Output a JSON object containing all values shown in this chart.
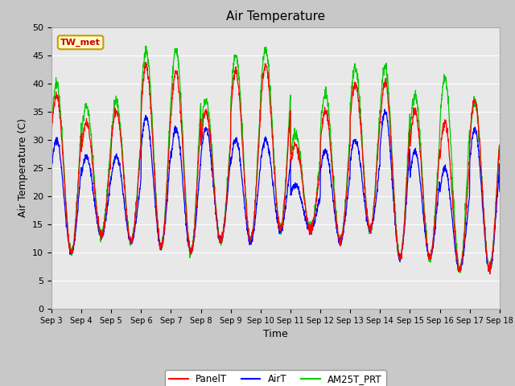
{
  "title": "Air Temperature",
  "xlabel": "Time",
  "ylabel": "Air Temperature (C)",
  "ylim": [
    0,
    50
  ],
  "yticks": [
    0,
    5,
    10,
    15,
    20,
    25,
    30,
    35,
    40,
    45,
    50
  ],
  "xlim_days": [
    3,
    18
  ],
  "xtick_labels": [
    "Sep 3",
    "Sep 4",
    "Sep 5",
    "Sep 6",
    "Sep 7",
    "Sep 8",
    "Sep 9",
    "Sep 10",
    "Sep 11",
    "Sep 12",
    "Sep 13",
    "Sep 14",
    "Sep 15",
    "Sep 16",
    "Sep 17",
    "Sep 18"
  ],
  "label_box_text": "TW_met",
  "legend_labels": [
    "PanelT",
    "AirT",
    "AM25T_PRT"
  ],
  "legend_colors": [
    "#ff0000",
    "#0000ff",
    "#00cc00"
  ],
  "fig_bg_color": "#c8c8c8",
  "plot_bg": "#e8e8e8",
  "grid_color": "#ffffff",
  "title_fontsize": 11,
  "axis_fontsize": 9,
  "tick_fontsize": 8
}
